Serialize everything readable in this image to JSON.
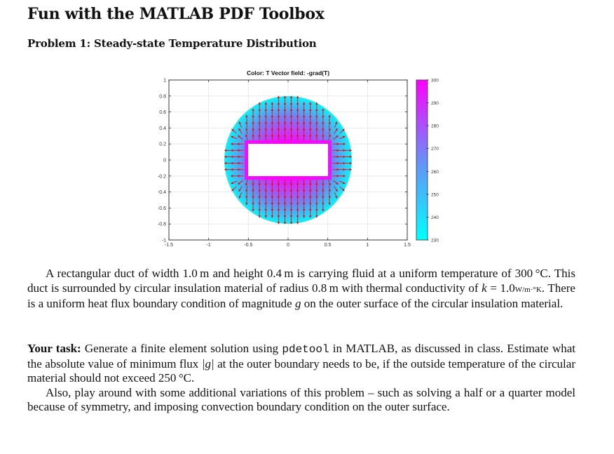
{
  "document": {
    "title": "Fun with the MATLAB PDF Toolbox",
    "section_title": "Problem 1: Steady-state Temperature Distribution"
  },
  "figure": {
    "title": "Color: T  Vector field: -grad(T)",
    "colors": {
      "hot": "#ff00ff",
      "cold": "#00ffff",
      "arrows": "#e0101a",
      "grid": "#e6e6e6",
      "axis": "#262626"
    }
  },
  "chart_data": {
    "type": "heatmap",
    "title": "Color: T  Vector field: -grad(T)",
    "xlabel": "",
    "ylabel": "",
    "xlim": [
      -1.5,
      1.5
    ],
    "ylim": [
      -1,
      1
    ],
    "x_ticks": [
      "-1.5",
      "-1",
      "-0.5",
      "0",
      "0.5",
      "1",
      "1.5"
    ],
    "y_ticks": [
      "1",
      "0.8",
      "0.6",
      "0.4",
      "0.2",
      "0",
      "-0.2",
      "-0.4",
      "-0.6",
      "-0.8",
      "-1"
    ],
    "grid": true,
    "geometry": {
      "outer_circle_radius": 0.8,
      "inner_rectangle": {
        "width": 1.0,
        "height": 0.4,
        "center": [
          0,
          0
        ]
      }
    },
    "field": {
      "color_variable": "T",
      "vector_field": "-grad(T)",
      "inner_boundary_value": 300,
      "outer_boundary_value_approx": 230
    },
    "colorbar": {
      "range": [
        230,
        300
      ],
      "ticks": [
        "300",
        "290",
        "280",
        "270",
        "260",
        "250",
        "240",
        "230"
      ],
      "colormap": [
        "#00ffff",
        "#ff00ff"
      ],
      "position": "right"
    }
  },
  "text": {
    "p1": {
      "s1": "A rectangular duct of width 1.0 m and height 0.4 m is carrying fluid at a uniform temperature of 300 °C. This duct is surrounded by circular insulation material of radius 0.8 m with thermal conductivity of ",
      "k": "k",
      "s2": " = 1.0",
      "units": "W/m·°K",
      "s3": ". There is a uniform heat flux boundary condition of magnitude ",
      "g": "g",
      "s4": " on the outer surface of the circular insulation material."
    },
    "p2": {
      "label": "Your task:",
      "s1": " Generate a finite element solution using ",
      "code": "pdetool",
      "s2": " in MATLAB, as discussed in class. Estimate what the absolute value of minimum flux ",
      "g_abs": "|g|",
      "s3": " at the outer boundary needs to be, if the outside temperature of the circular material should not exceed 250 °C."
    },
    "p3": {
      "s1": "Also, play around with some additional variations of this problem – such as solving a half or a quarter model because of symmetry, and imposing convection boundary condition on the outer surface."
    }
  }
}
